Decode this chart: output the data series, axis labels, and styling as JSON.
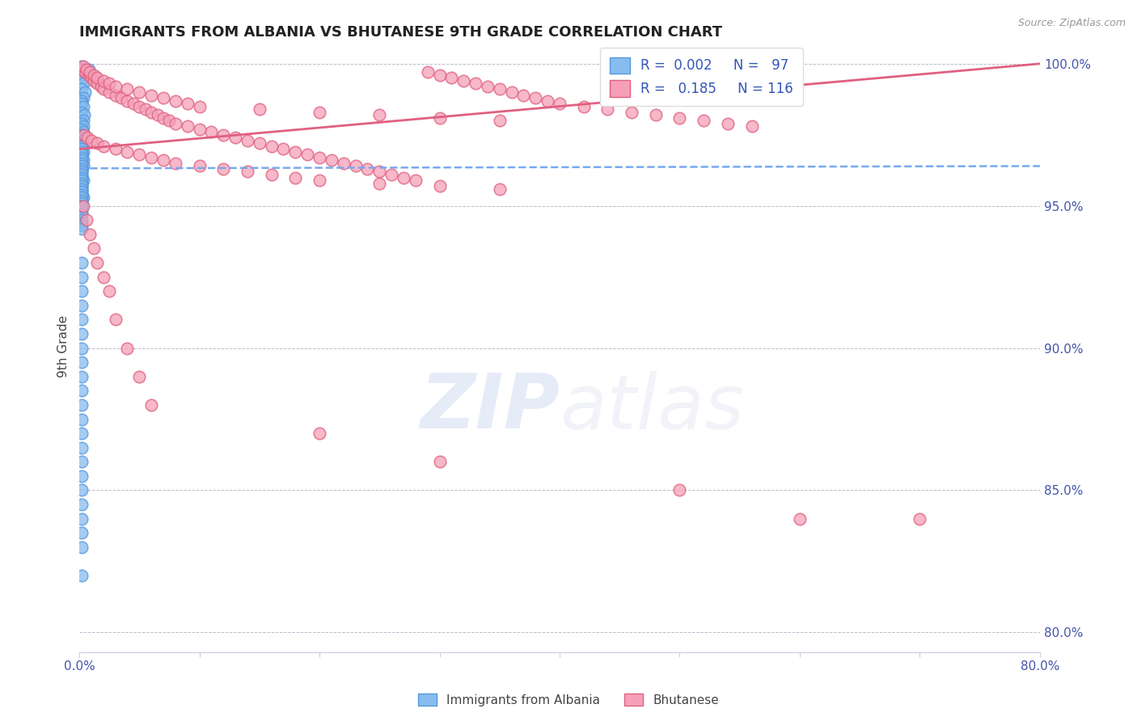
{
  "title": "IMMIGRANTS FROM ALBANIA VS BHUTANESE 9TH GRADE CORRELATION CHART",
  "source": "Source: ZipAtlas.com",
  "ylabel": "9th Grade",
  "xlim": [
    0.0,
    0.8
  ],
  "ylim": [
    0.793,
    1.008
  ],
  "xticks": [
    0.0,
    0.1,
    0.2,
    0.3,
    0.4,
    0.5,
    0.6,
    0.7,
    0.8
  ],
  "xticklabels": [
    "0.0%",
    "",
    "",
    "",
    "",
    "",
    "",
    "",
    "80.0%"
  ],
  "yticks": [
    0.8,
    0.85,
    0.9,
    0.95,
    1.0
  ],
  "yticklabels": [
    "80.0%",
    "85.0%",
    "90.0%",
    "95.0%",
    "100.0%"
  ],
  "albania_color": "#88BBEE",
  "albania_edge": "#5599DD",
  "bhutanese_color": "#F5A0B8",
  "bhutanese_edge": "#E06080",
  "trend_albania_color": "#77AAEE",
  "trend_bhutanese_color": "#E06080",
  "albania_x": [
    0.002,
    0.008,
    0.003,
    0.002,
    0.004,
    0.003,
    0.002,
    0.005,
    0.003,
    0.002,
    0.002,
    0.003,
    0.002,
    0.004,
    0.003,
    0.002,
    0.003,
    0.002,
    0.003,
    0.002,
    0.002,
    0.003,
    0.002,
    0.002,
    0.003,
    0.002,
    0.002,
    0.003,
    0.002,
    0.003,
    0.002,
    0.002,
    0.002,
    0.002,
    0.003,
    0.002,
    0.002,
    0.002,
    0.002,
    0.002,
    0.003,
    0.002,
    0.002,
    0.002,
    0.002,
    0.002,
    0.002,
    0.002,
    0.002,
    0.002,
    0.002,
    0.002,
    0.002,
    0.002,
    0.002,
    0.002,
    0.002,
    0.002,
    0.002,
    0.002,
    0.002,
    0.002,
    0.002,
    0.002,
    0.002,
    0.002,
    0.002,
    0.002,
    0.002,
    0.002,
    0.002,
    0.002,
    0.002,
    0.002,
    0.002,
    0.002,
    0.002,
    0.002,
    0.002,
    0.002,
    0.002,
    0.002,
    0.002,
    0.002,
    0.002,
    0.002,
    0.002,
    0.002,
    0.002,
    0.002,
    0.002,
    0.002,
    0.002,
    0.002,
    0.002,
    0.002,
    0.002
  ],
  "albania_y": [
    0.999,
    0.998,
    0.997,
    0.996,
    0.995,
    0.993,
    0.991,
    0.99,
    0.988,
    0.987,
    0.986,
    0.985,
    0.983,
    0.982,
    0.98,
    0.979,
    0.978,
    0.977,
    0.976,
    0.975,
    0.974,
    0.972,
    0.971,
    0.97,
    0.969,
    0.968,
    0.967,
    0.966,
    0.965,
    0.964,
    0.963,
    0.962,
    0.961,
    0.96,
    0.959,
    0.958,
    0.957,
    0.956,
    0.955,
    0.954,
    0.953,
    0.952,
    0.951,
    0.95,
    0.948,
    0.947,
    0.945,
    0.944,
    0.943,
    0.942,
    0.975,
    0.973,
    0.972,
    0.971,
    0.97,
    0.969,
    0.968,
    0.967,
    0.966,
    0.965,
    0.964,
    0.963,
    0.962,
    0.961,
    0.96,
    0.959,
    0.958,
    0.957,
    0.956,
    0.955,
    0.954,
    0.953,
    0.952,
    0.951,
    0.95,
    0.93,
    0.925,
    0.92,
    0.915,
    0.91,
    0.905,
    0.9,
    0.895,
    0.89,
    0.885,
    0.88,
    0.875,
    0.87,
    0.865,
    0.86,
    0.855,
    0.85,
    0.845,
    0.84,
    0.835,
    0.83,
    0.82
  ],
  "bhutanese_x": [
    0.002,
    0.005,
    0.008,
    0.01,
    0.012,
    0.015,
    0.018,
    0.02,
    0.025,
    0.03,
    0.035,
    0.04,
    0.045,
    0.05,
    0.055,
    0.06,
    0.065,
    0.07,
    0.075,
    0.08,
    0.09,
    0.1,
    0.11,
    0.12,
    0.13,
    0.14,
    0.15,
    0.16,
    0.17,
    0.18,
    0.19,
    0.2,
    0.21,
    0.22,
    0.23,
    0.24,
    0.25,
    0.26,
    0.27,
    0.28,
    0.29,
    0.3,
    0.31,
    0.32,
    0.33,
    0.34,
    0.35,
    0.36,
    0.37,
    0.38,
    0.39,
    0.4,
    0.42,
    0.44,
    0.46,
    0.48,
    0.5,
    0.52,
    0.54,
    0.56,
    0.003,
    0.006,
    0.009,
    0.012,
    0.015,
    0.02,
    0.025,
    0.03,
    0.04,
    0.05,
    0.06,
    0.07,
    0.08,
    0.09,
    0.1,
    0.15,
    0.2,
    0.25,
    0.3,
    0.35,
    0.004,
    0.007,
    0.01,
    0.015,
    0.02,
    0.03,
    0.04,
    0.05,
    0.06,
    0.07,
    0.08,
    0.1,
    0.12,
    0.14,
    0.16,
    0.18,
    0.2,
    0.25,
    0.3,
    0.35,
    0.003,
    0.006,
    0.009,
    0.012,
    0.015,
    0.02,
    0.025,
    0.03,
    0.04,
    0.05,
    0.06,
    0.2,
    0.3,
    0.5,
    0.6,
    0.7
  ],
  "bhutanese_y": [
    0.998,
    0.997,
    0.996,
    0.995,
    0.994,
    0.993,
    0.992,
    0.991,
    0.99,
    0.989,
    0.988,
    0.987,
    0.986,
    0.985,
    0.984,
    0.983,
    0.982,
    0.981,
    0.98,
    0.979,
    0.978,
    0.977,
    0.976,
    0.975,
    0.974,
    0.973,
    0.972,
    0.971,
    0.97,
    0.969,
    0.968,
    0.967,
    0.966,
    0.965,
    0.964,
    0.963,
    0.962,
    0.961,
    0.96,
    0.959,
    0.997,
    0.996,
    0.995,
    0.994,
    0.993,
    0.992,
    0.991,
    0.99,
    0.989,
    0.988,
    0.987,
    0.986,
    0.985,
    0.984,
    0.983,
    0.982,
    0.981,
    0.98,
    0.979,
    0.978,
    0.999,
    0.998,
    0.997,
    0.996,
    0.995,
    0.994,
    0.993,
    0.992,
    0.991,
    0.99,
    0.989,
    0.988,
    0.987,
    0.986,
    0.985,
    0.984,
    0.983,
    0.982,
    0.981,
    0.98,
    0.975,
    0.974,
    0.973,
    0.972,
    0.971,
    0.97,
    0.969,
    0.968,
    0.967,
    0.966,
    0.965,
    0.964,
    0.963,
    0.962,
    0.961,
    0.96,
    0.959,
    0.958,
    0.957,
    0.956,
    0.95,
    0.945,
    0.94,
    0.935,
    0.93,
    0.925,
    0.92,
    0.91,
    0.9,
    0.89,
    0.88,
    0.87,
    0.86,
    0.85,
    0.84,
    0.84
  ],
  "trend_alb_x0": 0.0,
  "trend_alb_x1": 0.8,
  "trend_alb_y0": 0.9632,
  "trend_alb_y1": 0.964,
  "trend_bhu_x0": 0.0,
  "trend_bhu_x1": 0.8,
  "trend_bhu_y0": 0.97,
  "trend_bhu_y1": 1.0
}
